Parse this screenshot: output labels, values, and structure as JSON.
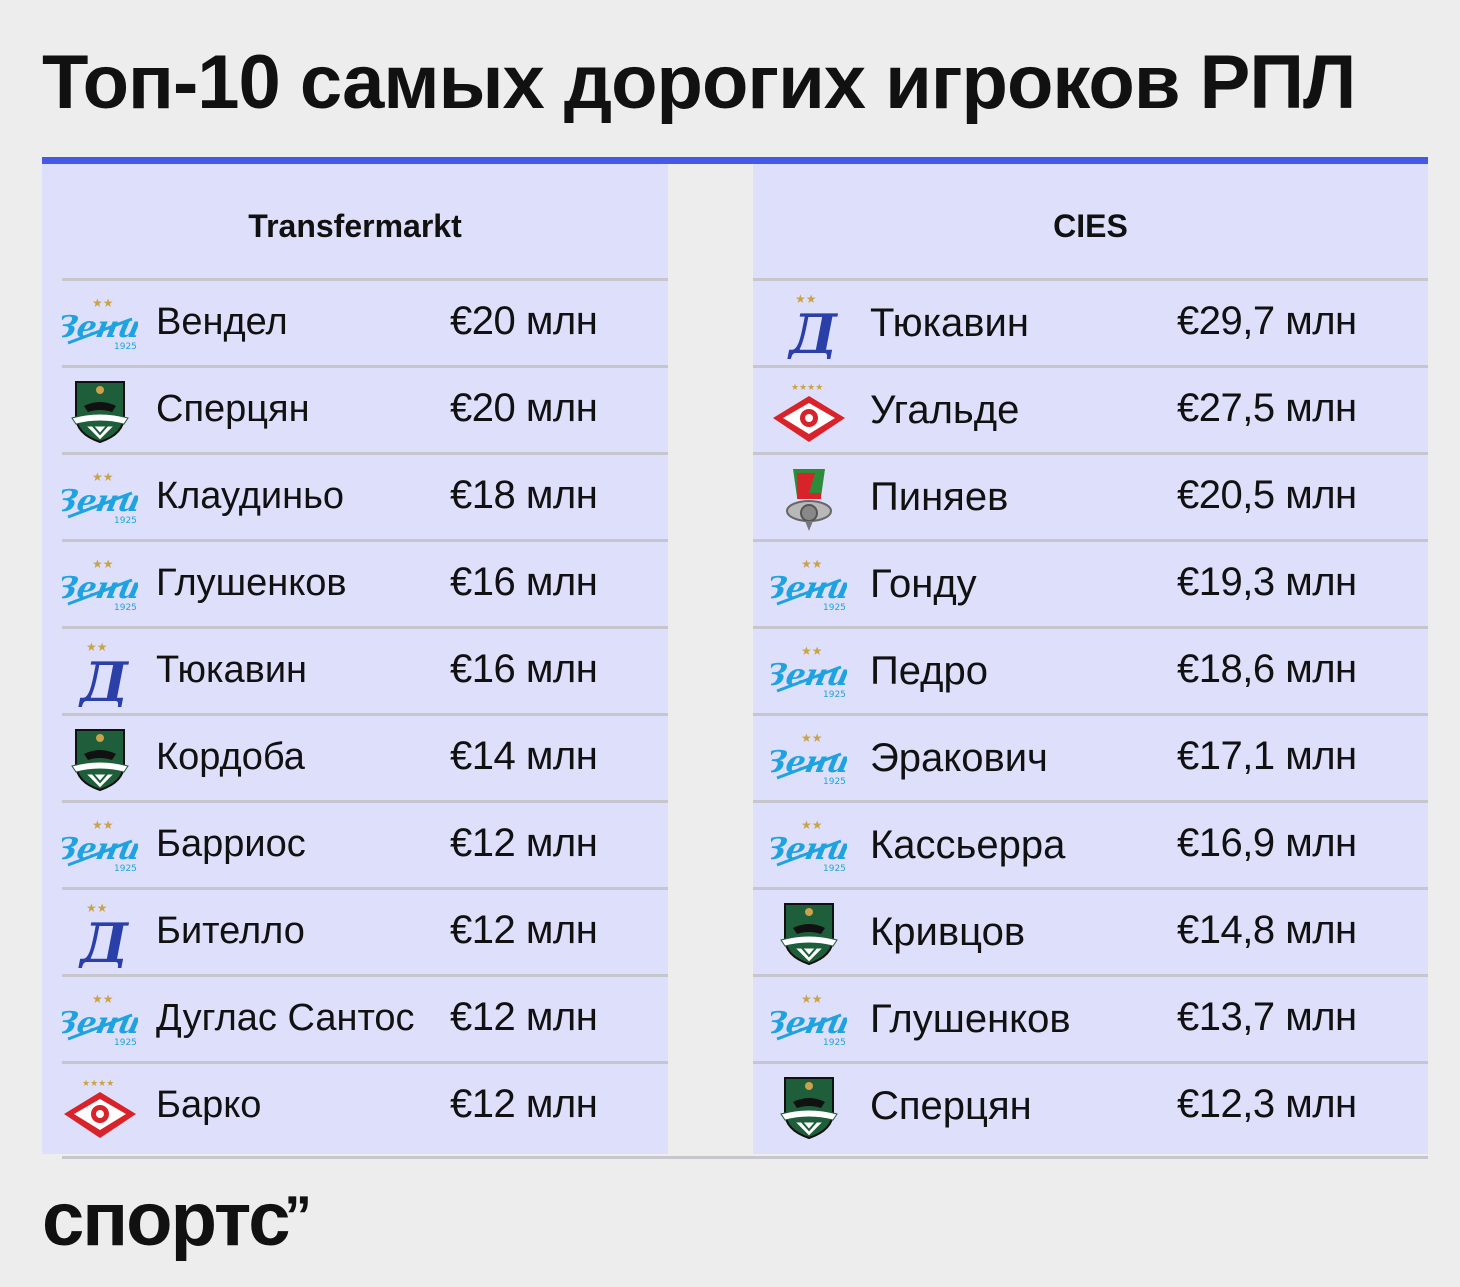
{
  "title": "Топ-10 самых дорогих игроков РПЛ",
  "colors": {
    "accent": "#4559e6",
    "panel": "#dee0fb",
    "background": "#ededed"
  },
  "transfermarkt": {
    "header": "Transfermarkt",
    "rows": [
      {
        "club": "zenit",
        "name": "Вендел",
        "value": "€20 млн"
      },
      {
        "club": "krasnodar",
        "name": "Сперцян",
        "value": "€20 млн"
      },
      {
        "club": "zenit",
        "name": "Клаудиньо",
        "value": "€18 млн"
      },
      {
        "club": "zenit",
        "name": "Глушенков",
        "value": "€16 млн"
      },
      {
        "club": "dynamo",
        "name": "Тюкавин",
        "value": "€16 млн"
      },
      {
        "club": "krasnodar",
        "name": "Кордоба",
        "value": "€14 млн"
      },
      {
        "club": "zenit",
        "name": "Барриос",
        "value": "€12 млн"
      },
      {
        "club": "dynamo",
        "name": "Бителло",
        "value": "€12 млн"
      },
      {
        "club": "zenit",
        "name": "Дуглас Сантос",
        "value": "€12 млн"
      },
      {
        "club": "spartak",
        "name": "Барко",
        "value": "€12 млн"
      }
    ]
  },
  "cies": {
    "header": "CIES",
    "rows": [
      {
        "club": "dynamo",
        "name": "Тюкавин",
        "value": "€29,7 млн"
      },
      {
        "club": "spartak",
        "name": "Угальде",
        "value": "€27,5 млн"
      },
      {
        "club": "lokomotiv",
        "name": "Пиняев",
        "value": "€20,5 млн"
      },
      {
        "club": "zenit",
        "name": "Гонду",
        "value": "€19,3 млн"
      },
      {
        "club": "zenit",
        "name": "Педро",
        "value": "€18,6 млн"
      },
      {
        "club": "zenit",
        "name": "Эракович",
        "value": "€17,1 млн"
      },
      {
        "club": "zenit",
        "name": "Кассьерра",
        "value": "€16,9 млн"
      },
      {
        "club": "krasnodar",
        "name": "Кривцов",
        "value": "€14,8 млн"
      },
      {
        "club": "zenit",
        "name": "Глушенков",
        "value": "€13,7 млн"
      },
      {
        "club": "krasnodar",
        "name": "Сперцян",
        "value": "€12,3 млн"
      }
    ]
  },
  "brand": "спортс",
  "brand_mark": "’’"
}
